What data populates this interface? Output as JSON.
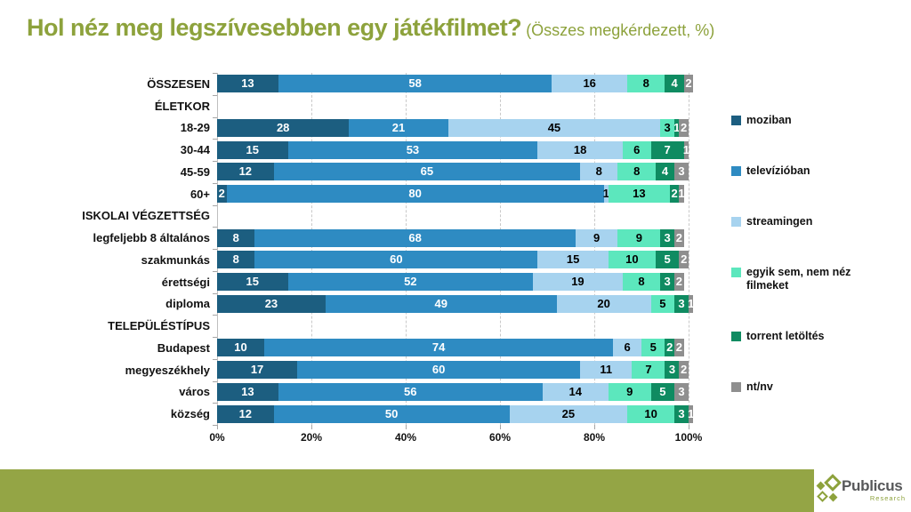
{
  "title": {
    "text": "Hol néz meg legszívesebben egy játékfilmet?",
    "subtitle": " (Összes megkérdezett, %)",
    "color": "#8DA23C"
  },
  "chart_data": {
    "type": "bar",
    "orientation": "horizontal-stacked",
    "unit": "%",
    "xlim": [
      0,
      100
    ],
    "x_ticks": [
      "0%",
      "20%",
      "40%",
      "60%",
      "80%",
      "100%"
    ],
    "grid": "dashed-vertical",
    "legend_position": "right",
    "series": [
      {
        "name": "moziban",
        "color": "#1C5E80",
        "label_color": "#FFFFFF"
      },
      {
        "name": "televízióban",
        "color": "#2E8BC2",
        "label_color": "#FFFFFF"
      },
      {
        "name": "streamingen",
        "color": "#A7D3EF",
        "label_color": "#000000"
      },
      {
        "name": "egyik sem, nem néz filmeket",
        "color": "#5CE7BD",
        "label_color": "#000000"
      },
      {
        "name": "torrent letöltés",
        "color": "#0F8B61",
        "label_color": "#FFFFFF"
      },
      {
        "name": "nt/nv",
        "color": "#8F8F8F",
        "label_color": "#FFFFFF"
      }
    ],
    "rows": [
      {
        "label": "ÖSSZESEN",
        "values": [
          13,
          58,
          16,
          8,
          4,
          2
        ]
      },
      {
        "label": "ÉLETKOR",
        "header": true
      },
      {
        "label": "18-29",
        "values": [
          28,
          21,
          45,
          3,
          1,
          2
        ]
      },
      {
        "label": "30-44",
        "values": [
          15,
          53,
          18,
          6,
          7,
          1
        ]
      },
      {
        "label": "45-59",
        "values": [
          12,
          65,
          8,
          8,
          4,
          3
        ]
      },
      {
        "label": "60+",
        "values": [
          2,
          80,
          1,
          13,
          2,
          1
        ]
      },
      {
        "label": "ISKOLAI VÉGZETTSÉG",
        "header": true
      },
      {
        "label": "legfeljebb 8 általános",
        "values": [
          8,
          68,
          9,
          9,
          3,
          2
        ]
      },
      {
        "label": "szakmunkás",
        "values": [
          8,
          60,
          15,
          10,
          5,
          2
        ]
      },
      {
        "label": "érettségi",
        "values": [
          15,
          52,
          19,
          8,
          3,
          2
        ]
      },
      {
        "label": "diploma",
        "values": [
          23,
          49,
          20,
          5,
          3,
          1
        ]
      },
      {
        "label": "TELEPÜLÉSTÍPUS",
        "header": true
      },
      {
        "label": "Budapest",
        "values": [
          10,
          74,
          6,
          5,
          2,
          2
        ]
      },
      {
        "label": "megyeszékhely",
        "values": [
          17,
          60,
          11,
          7,
          3,
          2
        ]
      },
      {
        "label": "város",
        "values": [
          13,
          56,
          14,
          9,
          5,
          3
        ]
      },
      {
        "label": "község",
        "values": [
          12,
          50,
          25,
          10,
          3,
          1
        ]
      }
    ]
  },
  "footer": {
    "bar_color": "#94A545",
    "logo_color": "#8DA23C",
    "brand": "Publicus",
    "brand_sub": "Research"
  }
}
